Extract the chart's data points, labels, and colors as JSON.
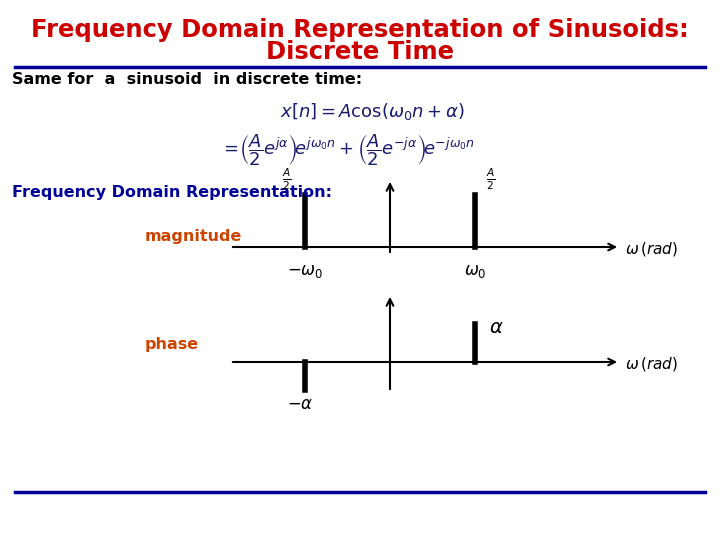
{
  "title_line1": "Frequency Domain Representation of Sinusoids:",
  "title_line2": "Discrete Time",
  "title_color": "#CC0000",
  "title_fontsize": 17.5,
  "subtitle_fontsize": 11.5,
  "subtitle_text": "Same for  a  sinusoid  in discrete time:",
  "freq_domain_label": "Frequency Domain Representation:",
  "freq_domain_color": "#000099",
  "freq_domain_fontsize": 11.5,
  "magnitude_label": "magnitude",
  "magnitude_color": "#CC4400",
  "phase_label": "phase",
  "phase_color": "#CC4400",
  "label_fontsize": 11.5,
  "bg_color": "#FFFFFF",
  "divider_color": "#000099",
  "eq_color": "#1a1a6e",
  "eq1_fontsize": 13,
  "eq2_fontsize": 13
}
